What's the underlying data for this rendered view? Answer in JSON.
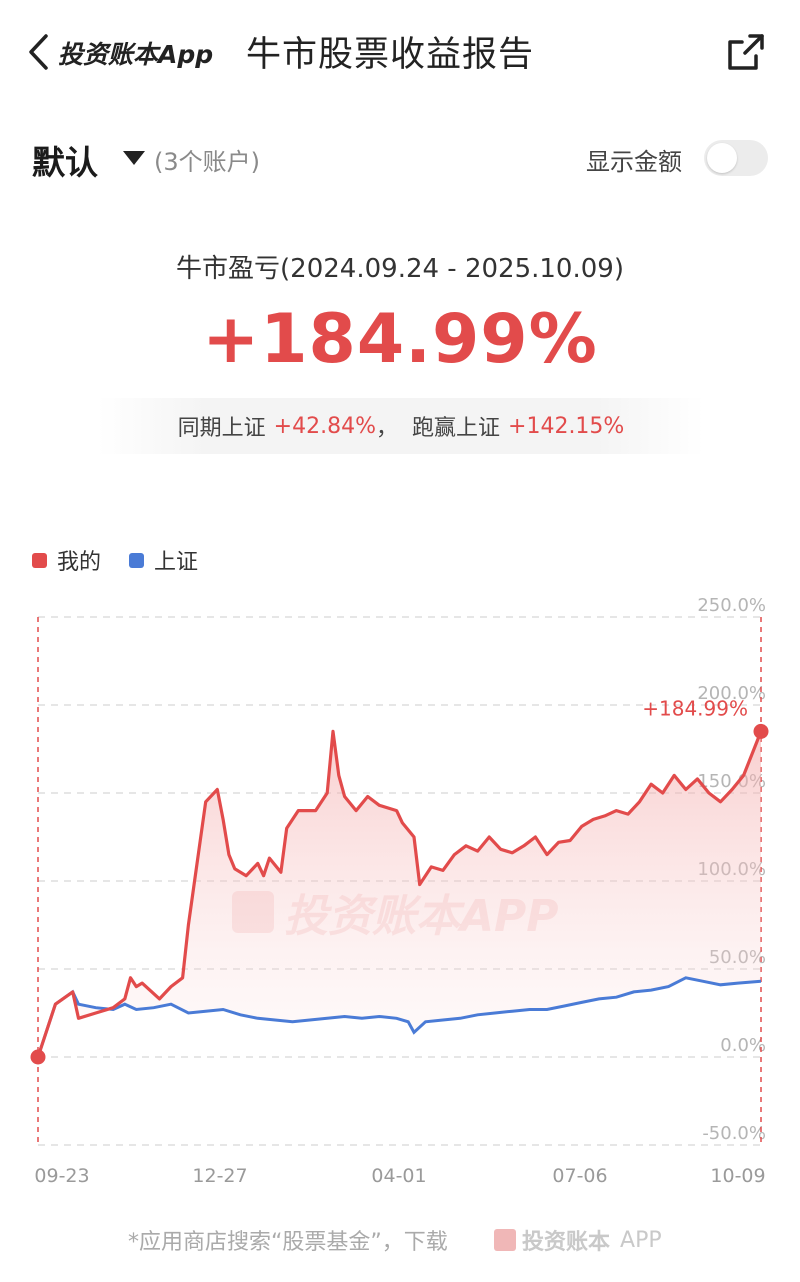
{
  "header": {
    "app_name": "投资账本App",
    "title": "牛市股票收益报告",
    "icons": {
      "back": "chevron-left-icon",
      "share": "share-icon"
    }
  },
  "account": {
    "name": "默认",
    "count": "(3个账户)",
    "show_amount_label": "显示金额",
    "show_amount_on": false
  },
  "summary": {
    "period_label": "牛市盈亏(2024.09.24 - 2025.10.09)",
    "return": "+184.99%",
    "compare_prefix": "同期上证",
    "compare_value": "+42.84%",
    "compare_sep": "，",
    "beat_prefix": "跑赢上证",
    "beat_value": "+142.15%"
  },
  "legend": [
    {
      "label": "我的",
      "color": "#e24b4b"
    },
    {
      "label": "上证",
      "color": "#4a7bd6"
    }
  ],
  "chart_data": {
    "type": "line",
    "x_ticks": [
      "09-23",
      "12-27",
      "04-01",
      "07-06",
      "10-09"
    ],
    "y_ticks": [
      "250.0%",
      "200.0%",
      "150.0%",
      "100.0%",
      "50.0%",
      "0.0%",
      "-50.0%"
    ],
    "ylim": [
      -50,
      250
    ],
    "end_label": "+184.99%",
    "watermark": "投资账本APP",
    "series": [
      {
        "name": "我的",
        "color": "#e24b4b",
        "points": [
          [
            0,
            0
          ],
          [
            0.03,
            30
          ],
          [
            0.06,
            37
          ],
          [
            0.07,
            22
          ],
          [
            0.1,
            25
          ],
          [
            0.13,
            28
          ],
          [
            0.15,
            33
          ],
          [
            0.16,
            45
          ],
          [
            0.17,
            40
          ],
          [
            0.18,
            42
          ],
          [
            0.21,
            33
          ],
          [
            0.23,
            40
          ],
          [
            0.25,
            45
          ],
          [
            0.26,
            75
          ],
          [
            0.28,
            122
          ],
          [
            0.29,
            145
          ],
          [
            0.31,
            152
          ],
          [
            0.32,
            135
          ],
          [
            0.33,
            115
          ],
          [
            0.34,
            107
          ],
          [
            0.36,
            103
          ],
          [
            0.38,
            110
          ],
          [
            0.39,
            103
          ],
          [
            0.4,
            113
          ],
          [
            0.42,
            105
          ],
          [
            0.43,
            130
          ],
          [
            0.45,
            140
          ],
          [
            0.48,
            140
          ],
          [
            0.5,
            150
          ],
          [
            0.51,
            185
          ],
          [
            0.52,
            160
          ],
          [
            0.53,
            148
          ],
          [
            0.55,
            140
          ],
          [
            0.57,
            148
          ],
          [
            0.59,
            143
          ],
          [
            0.62,
            140
          ],
          [
            0.63,
            133
          ],
          [
            0.65,
            125
          ],
          [
            0.66,
            98
          ],
          [
            0.68,
            108
          ],
          [
            0.7,
            106
          ],
          [
            0.72,
            115
          ],
          [
            0.74,
            120
          ],
          [
            0.76,
            117
          ],
          [
            0.78,
            125
          ],
          [
            0.8,
            118
          ],
          [
            0.82,
            116
          ],
          [
            0.84,
            120
          ],
          [
            0.86,
            125
          ],
          [
            0.88,
            115
          ],
          [
            0.9,
            122
          ],
          [
            0.92,
            123
          ],
          [
            0.94,
            131
          ],
          [
            0.96,
            135
          ],
          [
            0.98,
            137
          ],
          [
            1.0,
            140
          ],
          [
            1.02,
            138
          ],
          [
            1.04,
            145
          ],
          [
            1.06,
            155
          ],
          [
            1.08,
            150
          ],
          [
            1.1,
            160
          ],
          [
            1.12,
            152
          ],
          [
            1.14,
            158
          ],
          [
            1.16,
            150
          ],
          [
            1.18,
            145
          ],
          [
            1.2,
            152
          ],
          [
            1.22,
            160
          ],
          [
            1.25,
            185
          ]
        ]
      },
      {
        "name": "上证",
        "color": "#4a7bd6",
        "points": [
          [
            0,
            0
          ],
          [
            0.03,
            30
          ],
          [
            0.06,
            37
          ],
          [
            0.07,
            30
          ],
          [
            0.1,
            28
          ],
          [
            0.13,
            27
          ],
          [
            0.15,
            30
          ],
          [
            0.17,
            27
          ],
          [
            0.2,
            28
          ],
          [
            0.23,
            30
          ],
          [
            0.26,
            25
          ],
          [
            0.29,
            26
          ],
          [
            0.32,
            27
          ],
          [
            0.35,
            24
          ],
          [
            0.38,
            22
          ],
          [
            0.41,
            21
          ],
          [
            0.44,
            20
          ],
          [
            0.47,
            21
          ],
          [
            0.5,
            22
          ],
          [
            0.53,
            23
          ],
          [
            0.56,
            22
          ],
          [
            0.59,
            23
          ],
          [
            0.62,
            22
          ],
          [
            0.64,
            20
          ],
          [
            0.65,
            14
          ],
          [
            0.67,
            20
          ],
          [
            0.7,
            21
          ],
          [
            0.73,
            22
          ],
          [
            0.76,
            24
          ],
          [
            0.79,
            25
          ],
          [
            0.82,
            26
          ],
          [
            0.85,
            27
          ],
          [
            0.88,
            27
          ],
          [
            0.91,
            29
          ],
          [
            0.94,
            31
          ],
          [
            0.97,
            33
          ],
          [
            1.0,
            34
          ],
          [
            1.03,
            37
          ],
          [
            1.06,
            38
          ],
          [
            1.09,
            40
          ],
          [
            1.12,
            45
          ],
          [
            1.15,
            43
          ],
          [
            1.18,
            41
          ],
          [
            1.21,
            42
          ],
          [
            1.25,
            43
          ]
        ]
      }
    ]
  }
}
